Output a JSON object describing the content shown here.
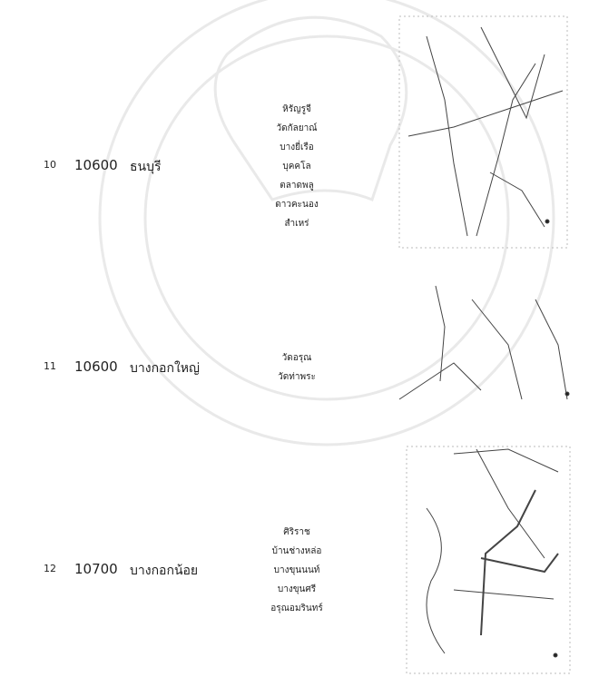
{
  "table": {
    "rows": [
      {
        "number": "10",
        "postal_code": "10600",
        "district": "ธนบุรี",
        "sub_districts": [
          "หิรัญรูจี",
          "วัดกัลยาณ์",
          "บางยี่เรือ",
          "บุคคโล",
          "ตลาดพลู",
          "ดาวคะนอง",
          "สำเหร่"
        ]
      },
      {
        "number": "11",
        "postal_code": "10600",
        "district": "บางกอกใหญ่",
        "sub_districts": [
          "วัดอรุณ",
          "วัดท่าพระ"
        ]
      },
      {
        "number": "12",
        "postal_code": "10700",
        "district": "บางกอกน้อย",
        "sub_districts": [
          "ศิริราช",
          "บ้านช่างหล่อ",
          "บางขุนนนท์",
          "บางขุนศรี",
          "อรุณอมรินทร์"
        ]
      }
    ]
  }
}
